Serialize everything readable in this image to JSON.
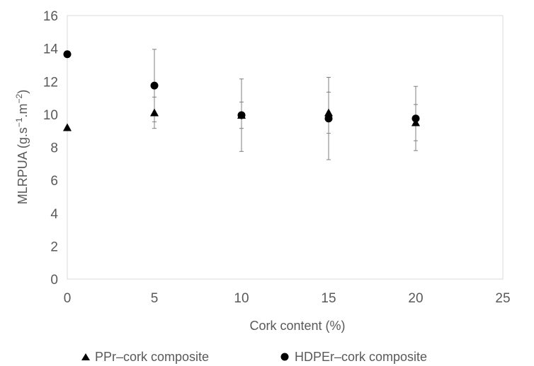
{
  "chart_data": {
    "type": "scatter",
    "xlabel": "Cork content (%)",
    "ylabel": {
      "base": "MLRPUA (g.s",
      "sup1": "−1",
      "mid": ".m",
      "sup2": "−2",
      "end": ")"
    },
    "xlim": [
      0,
      25
    ],
    "ylim": [
      0,
      16
    ],
    "xticks": [
      "0",
      "5",
      "10",
      "15",
      "20",
      "25"
    ],
    "yticks": [
      "0",
      "2",
      "4",
      "6",
      "8",
      "10",
      "12",
      "14",
      "16"
    ],
    "grid": false,
    "legend_position": "bottom",
    "series": [
      {
        "name": "PPr–cork composite",
        "marker": "triangle",
        "color": "#000000",
        "points": [
          {
            "x": 0,
            "y": 9.2,
            "err": 0
          },
          {
            "x": 5,
            "y": 10.1,
            "err": 0.95
          },
          {
            "x": 10,
            "y": 9.95,
            "err": 0.8
          },
          {
            "x": 15,
            "y": 10.1,
            "err": 1.25
          },
          {
            "x": 20,
            "y": 9.5,
            "err": 1.1
          }
        ]
      },
      {
        "name": "HDPEr–cork composite",
        "marker": "circle",
        "color": "#000000",
        "points": [
          {
            "x": 0,
            "y": 13.65,
            "err": 0
          },
          {
            "x": 5,
            "y": 11.75,
            "err": 2.2
          },
          {
            "x": 10,
            "y": 9.95,
            "err": 2.2
          },
          {
            "x": 15,
            "y": 9.75,
            "err": 2.5
          },
          {
            "x": 20,
            "y": 9.75,
            "err": 1.95
          }
        ]
      }
    ]
  }
}
